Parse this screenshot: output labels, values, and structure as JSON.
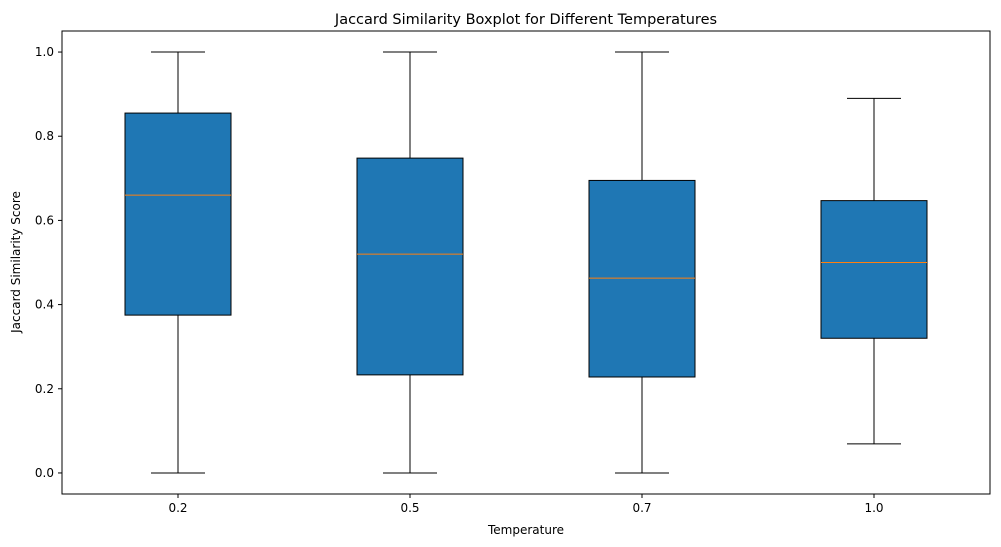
{
  "chart_data": {
    "type": "boxplot",
    "title": "Jaccard Similarity Boxplot for Different Temperatures",
    "xlabel": "Temperature",
    "ylabel": "Jaccard Similarity Score",
    "categories": [
      "0.2",
      "0.5",
      "0.7",
      "1.0"
    ],
    "boxes": [
      {
        "category": "0.2",
        "whisker_low": 0.0,
        "q1": 0.375,
        "median": 0.66,
        "q3": 0.855,
        "whisker_high": 1.0
      },
      {
        "category": "0.5",
        "whisker_low": 0.0,
        "q1": 0.233,
        "median": 0.52,
        "q3": 0.748,
        "whisker_high": 1.0
      },
      {
        "category": "0.7",
        "whisker_low": 0.0,
        "q1": 0.228,
        "median": 0.463,
        "q3": 0.695,
        "whisker_high": 1.0
      },
      {
        "category": "1.0",
        "whisker_low": 0.069,
        "q1": 0.32,
        "median": 0.5,
        "q3": 0.647,
        "whisker_high": 0.89
      }
    ],
    "ylim": [
      -0.05,
      1.05
    ],
    "yticks": [
      "0.0",
      "0.2",
      "0.4",
      "0.6",
      "0.8",
      "1.0"
    ],
    "grid": false,
    "colors": {
      "box_fill": "#1f77b4",
      "median": "#ff7f0e",
      "lines": "#000000"
    }
  }
}
